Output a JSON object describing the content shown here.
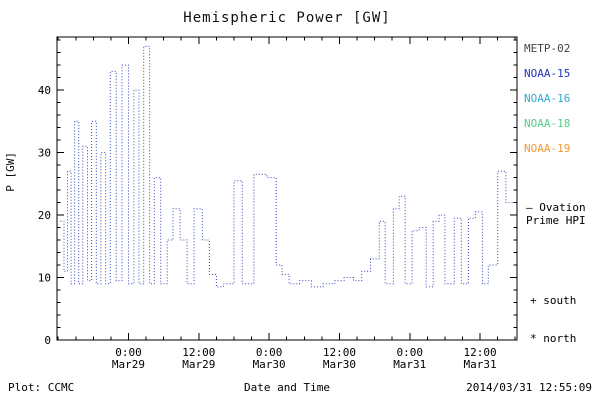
{
  "title": "Hemispheric Power [GW]",
  "footer": {
    "left": "Plot: CCMC",
    "center": "Date and Time",
    "right": "2014/03/31 12:55:09"
  },
  "legend": {
    "satellites": [
      {
        "label": "METP-02",
        "color": "#444444"
      },
      {
        "label": "NOAA-15",
        "color": "#2233bb"
      },
      {
        "label": "NOAA-16",
        "color": "#33aacc"
      },
      {
        "label": "NOAA-18",
        "color": "#55cc88"
      },
      {
        "label": "NOAA-19",
        "color": "#ee9933"
      }
    ],
    "line_label_1": "— Ovation",
    "line_label_2": "Prime HPI",
    "south_label": "+ south",
    "north_label": "* north"
  },
  "chart_data": {
    "type": "line",
    "style": "step-dotted",
    "series_name": "Ovation Prime HPI",
    "title": "Hemispheric Power [GW]",
    "xlabel": "Date and Time",
    "ylabel": "P [GW]",
    "ylim": [
      0,
      48.5
    ],
    "xlim_hours": [
      -12.2,
      66.3
    ],
    "x_hours_origin": "2014 Mar29 0:00",
    "line_color": "#3344bb",
    "y_ticks": [
      0,
      10,
      20,
      30,
      40
    ],
    "x_ticks": [
      {
        "hours": 0,
        "time": "0:00",
        "date": "Mar29"
      },
      {
        "hours": 12,
        "time": "12:00",
        "date": "Mar29"
      },
      {
        "hours": 24,
        "time": "0:00",
        "date": "Mar30"
      },
      {
        "hours": 36,
        "time": "12:00",
        "date": "Mar30"
      },
      {
        "hours": 48,
        "time": "0:00",
        "date": "Mar31"
      },
      {
        "hours": 60,
        "time": "12:00",
        "date": "Mar31"
      }
    ],
    "steps": [
      [
        -11.6,
        19
      ],
      [
        -11.0,
        11
      ],
      [
        -10.4,
        27
      ],
      [
        -9.8,
        9
      ],
      [
        -9.2,
        35
      ],
      [
        -8.5,
        9
      ],
      [
        -7.8,
        31
      ],
      [
        -7.0,
        9.5
      ],
      [
        -6.3,
        35
      ],
      [
        -5.5,
        9
      ],
      [
        -4.7,
        30
      ],
      [
        -3.9,
        9
      ],
      [
        -3.1,
        43
      ],
      [
        -2.1,
        9.5
      ],
      [
        -1.1,
        44
      ],
      [
        0.0,
        9
      ],
      [
        0.9,
        40
      ],
      [
        1.8,
        9
      ],
      [
        2.6,
        47
      ],
      [
        3.6,
        9
      ],
      [
        4.4,
        26
      ],
      [
        5.5,
        9
      ],
      [
        6.6,
        16
      ],
      [
        7.6,
        21
      ],
      [
        8.8,
        16
      ],
      [
        10.0,
        9
      ],
      [
        11.2,
        21
      ],
      [
        12.6,
        16
      ],
      [
        13.8,
        10.5
      ],
      [
        15.0,
        8.5
      ],
      [
        16.2,
        9
      ],
      [
        18.0,
        25.5
      ],
      [
        19.4,
        9
      ],
      [
        21.4,
        26.5
      ],
      [
        23.6,
        26
      ],
      [
        25.2,
        12
      ],
      [
        26.2,
        10.5
      ],
      [
        27.4,
        9
      ],
      [
        29.2,
        9.5
      ],
      [
        31.2,
        8.5
      ],
      [
        33.2,
        9
      ],
      [
        35.2,
        9.5
      ],
      [
        36.8,
        10
      ],
      [
        38.4,
        9.5
      ],
      [
        39.8,
        11
      ],
      [
        41.3,
        13
      ],
      [
        42.8,
        19
      ],
      [
        43.8,
        9
      ],
      [
        45.2,
        21
      ],
      [
        46.2,
        23
      ],
      [
        47.2,
        9
      ],
      [
        48.4,
        17.5
      ],
      [
        49.6,
        18
      ],
      [
        50.8,
        8.5
      ],
      [
        52.0,
        19
      ],
      [
        53.0,
        20
      ],
      [
        54.0,
        9
      ],
      [
        55.6,
        19.5
      ],
      [
        56.8,
        9
      ],
      [
        58.0,
        19.5
      ],
      [
        59.2,
        20.5
      ],
      [
        60.4,
        9
      ],
      [
        61.4,
        12
      ],
      [
        63.0,
        27
      ],
      [
        64.4,
        22
      ]
    ]
  }
}
